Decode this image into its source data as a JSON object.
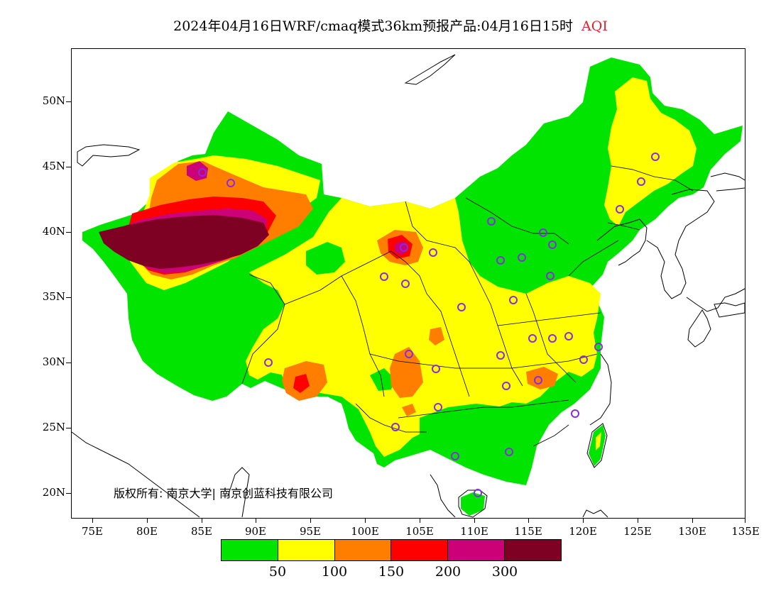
{
  "title": {
    "main": "2024年04月16日WRF/cmaq模式36km预报产品:04月16日15时",
    "variable": "AQI",
    "variable_color": "#e0222a"
  },
  "axes": {
    "y_labels": [
      "50N",
      "45N",
      "40N",
      "35N",
      "30N",
      "25N",
      "20N"
    ],
    "x_labels": [
      "75E",
      "80E",
      "85E",
      "90E",
      "95E",
      "100E",
      "105E",
      "110E",
      "115E",
      "120E",
      "125E",
      "130E",
      "135E"
    ]
  },
  "copyright": "版权所有: 南京大学| 南京创蓝科技有限公司",
  "legend": {
    "colors": [
      "#00e400",
      "#ffff00",
      "#ff7e00",
      "#ff0000",
      "#cc0077",
      "#7e0023"
    ],
    "labels": [
      "50",
      "100",
      "150",
      "200",
      "300"
    ]
  },
  "map": {
    "colors": {
      "good": "#00e400",
      "moderate": "#ffff00",
      "usg": "#ff7e00",
      "unhealthy": "#ff0000",
      "very_unhealthy": "#cc0077",
      "hazardous": "#7e0023",
      "station": "#8a2be2"
    }
  }
}
